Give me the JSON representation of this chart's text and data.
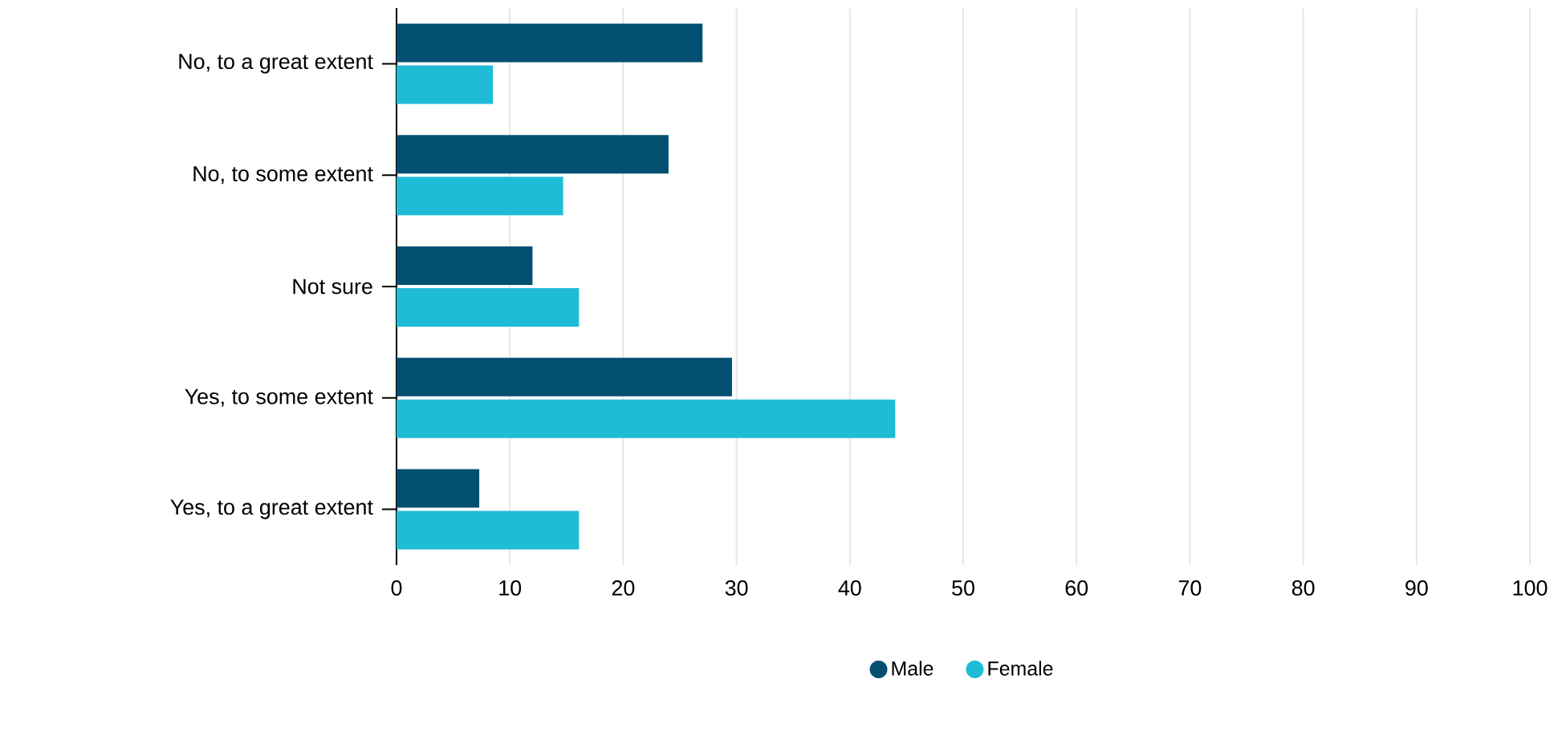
{
  "chart_data": {
    "type": "bar",
    "orientation": "horizontal",
    "categories": [
      "No, to a great extent",
      "No, to some extent",
      "Not sure",
      "Yes, to some extent",
      "Yes, to a great extent"
    ],
    "series": [
      {
        "name": "Male",
        "color": "#034f72",
        "values": [
          27,
          24,
          12,
          29.6,
          7.3
        ]
      },
      {
        "name": "Female",
        "color": "#1fbcd6",
        "values": [
          8.5,
          14.7,
          16.1,
          44,
          16.1
        ]
      }
    ],
    "xlim": [
      0,
      100
    ],
    "xticks": [
      0,
      10,
      20,
      30,
      40,
      50,
      60,
      70,
      80,
      90,
      100
    ],
    "grid": "x",
    "legend": "bottom"
  }
}
